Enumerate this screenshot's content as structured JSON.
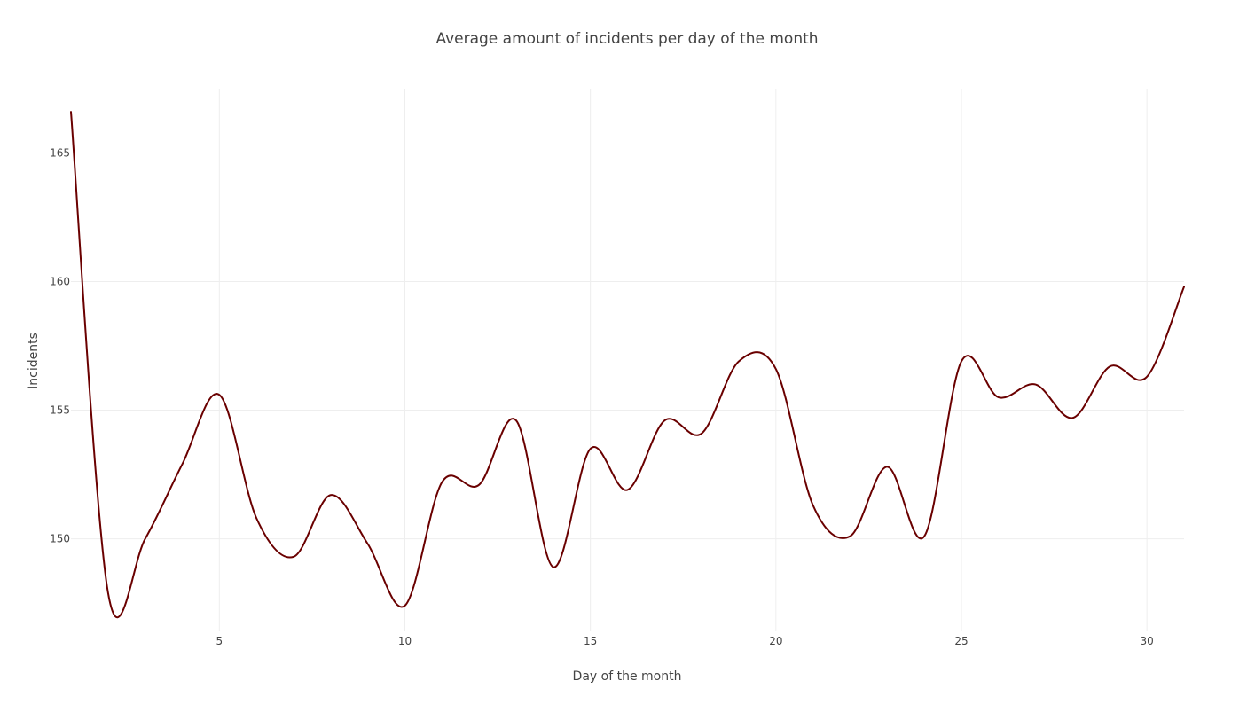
{
  "chart_data": {
    "type": "line",
    "title": "Average amount of incidents per day of the month",
    "xlabel": "Day of the month",
    "ylabel": "Incidents",
    "xlim": [
      1,
      31
    ],
    "ylim": [
      146.4,
      167.5
    ],
    "x_ticks": [
      5,
      10,
      15,
      20,
      25,
      30
    ],
    "y_ticks": [
      150,
      155,
      160,
      165
    ],
    "grid": true,
    "line_shape": "spline",
    "series": [
      {
        "color": "#6a0000",
        "x": [
          1,
          2,
          3,
          4,
          5,
          6,
          7,
          8,
          9,
          10,
          11,
          12,
          13,
          14,
          15,
          16,
          17,
          18,
          19,
          20,
          21,
          22,
          23,
          24,
          25,
          26,
          27,
          28,
          29,
          30,
          31
        ],
        "y": [
          166.6,
          147.9,
          150.0,
          152.9,
          155.6,
          150.8,
          149.3,
          151.7,
          149.8,
          147.4,
          152.2,
          152.1,
          154.6,
          148.9,
          153.5,
          151.9,
          154.6,
          154.1,
          156.9,
          156.6,
          151.3,
          150.1,
          152.8,
          150.1,
          156.9,
          155.5,
          156.0,
          154.7,
          156.7,
          156.3,
          159.8
        ]
      }
    ]
  }
}
